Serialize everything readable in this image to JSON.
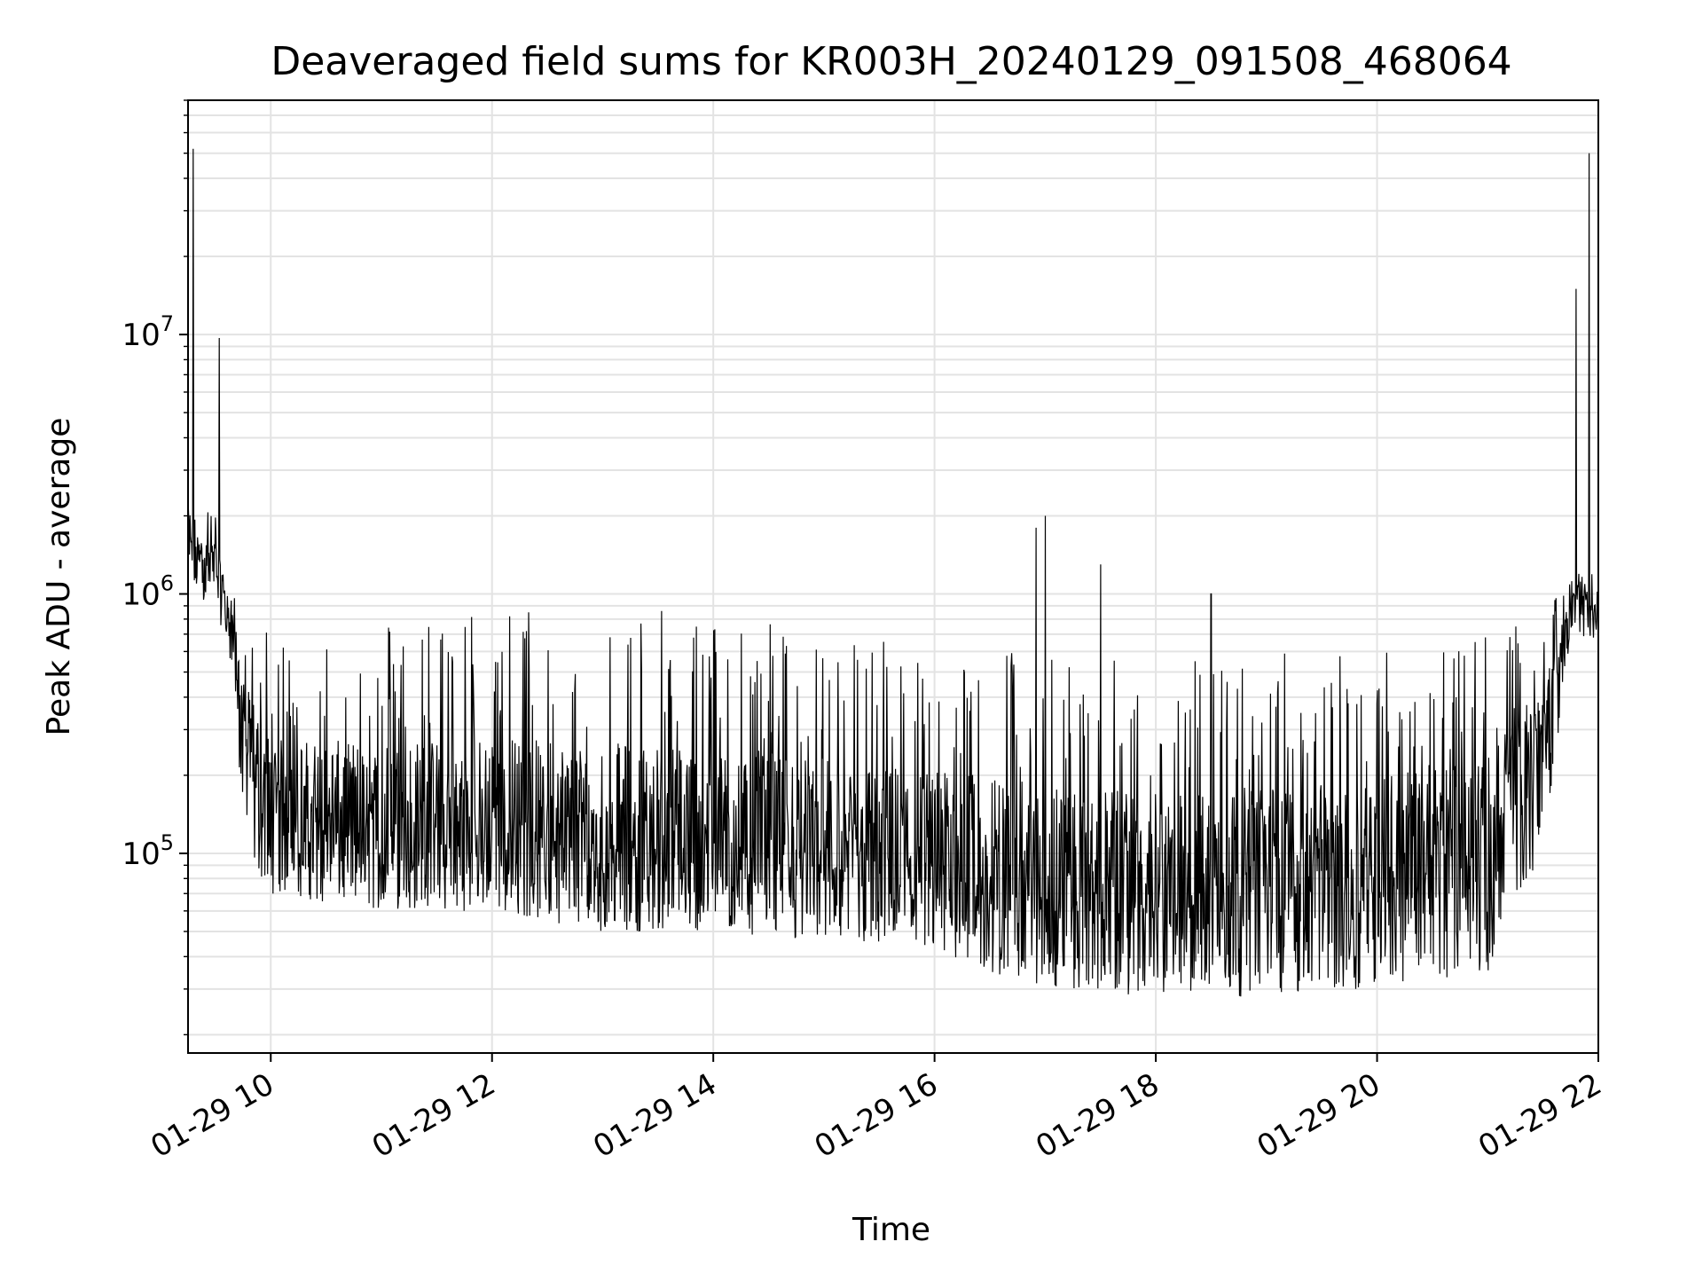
{
  "chart_data": {
    "type": "line",
    "title": "Deaveraged field sums for KR003H_20240129_091508_468064",
    "xlabel": "Time",
    "ylabel": "Peak ADU - average",
    "x_axis": {
      "kind": "datetime",
      "range": [
        "2024-01-29T09:15:08",
        "2024-01-29T22:00:00"
      ],
      "ticks": [
        {
          "x": "2024-01-29T10:00",
          "label": "01-29 10"
        },
        {
          "x": "2024-01-29T12:00",
          "label": "01-29 12"
        },
        {
          "x": "2024-01-29T14:00",
          "label": "01-29 14"
        },
        {
          "x": "2024-01-29T16:00",
          "label": "01-29 16"
        },
        {
          "x": "2024-01-29T18:00",
          "label": "01-29 18"
        },
        {
          "x": "2024-01-29T20:00",
          "label": "01-29 20"
        },
        {
          "x": "2024-01-29T22:00",
          "label": "01-29 22"
        }
      ]
    },
    "y_axis": {
      "scale": "log",
      "range": [
        17000,
        80000000
      ],
      "ticks": [
        {
          "value": 100000,
          "base": "10",
          "exp": "5"
        },
        {
          "value": 1000000,
          "base": "10",
          "exp": "6"
        },
        {
          "value": 10000000,
          "base": "10",
          "exp": "7"
        }
      ]
    },
    "grid": true,
    "line_color": "#000000",
    "series": [
      {
        "description": "dense noisy time series; approximate envelope given as [time, lower, typical, upper] in ADU",
        "envelope": [
          [
            "2024-01-29T09:15",
            1000000,
            1500000,
            3500000
          ],
          [
            "2024-01-29T09:30",
            900000,
            1300000,
            2000000
          ],
          [
            "2024-01-29T09:40",
            500000,
            700000,
            1000000
          ],
          [
            "2024-01-29T09:45",
            100000,
            300000,
            800000
          ],
          [
            "2024-01-29T10:00",
            70000,
            130000,
            700000
          ],
          [
            "2024-01-29T11:00",
            60000,
            110000,
            800000
          ],
          [
            "2024-01-29T12:00",
            60000,
            110000,
            900000
          ],
          [
            "2024-01-29T13:00",
            50000,
            100000,
            900000
          ],
          [
            "2024-01-29T14:00",
            50000,
            100000,
            850000
          ],
          [
            "2024-01-29T15:00",
            45000,
            90000,
            750000
          ],
          [
            "2024-01-29T16:00",
            40000,
            80000,
            700000
          ],
          [
            "2024-01-29T17:00",
            30000,
            70000,
            600000
          ],
          [
            "2024-01-29T18:00",
            28000,
            65000,
            550000
          ],
          [
            "2024-01-29T19:00",
            28000,
            70000,
            600000
          ],
          [
            "2024-01-29T20:00",
            30000,
            80000,
            650000
          ],
          [
            "2024-01-29T21:00",
            35000,
            100000,
            700000
          ],
          [
            "2024-01-29T21:30",
            100000,
            300000,
            800000
          ],
          [
            "2024-01-29T21:45",
            700000,
            900000,
            1200000
          ],
          [
            "2024-01-29T22:00",
            600000,
            900000,
            1200000
          ]
        ],
        "spikes": [
          [
            "2024-01-29T09:18",
            52000000
          ],
          [
            "2024-01-29T09:32",
            9700000
          ],
          [
            "2024-01-29T16:55",
            1800000
          ],
          [
            "2024-01-29T17:00",
            2000000
          ],
          [
            "2024-01-29T17:30",
            1300000
          ],
          [
            "2024-01-29T18:30",
            1000000
          ],
          [
            "2024-01-29T21:48",
            15000000
          ],
          [
            "2024-01-29T21:55",
            50000000
          ]
        ]
      }
    ]
  }
}
